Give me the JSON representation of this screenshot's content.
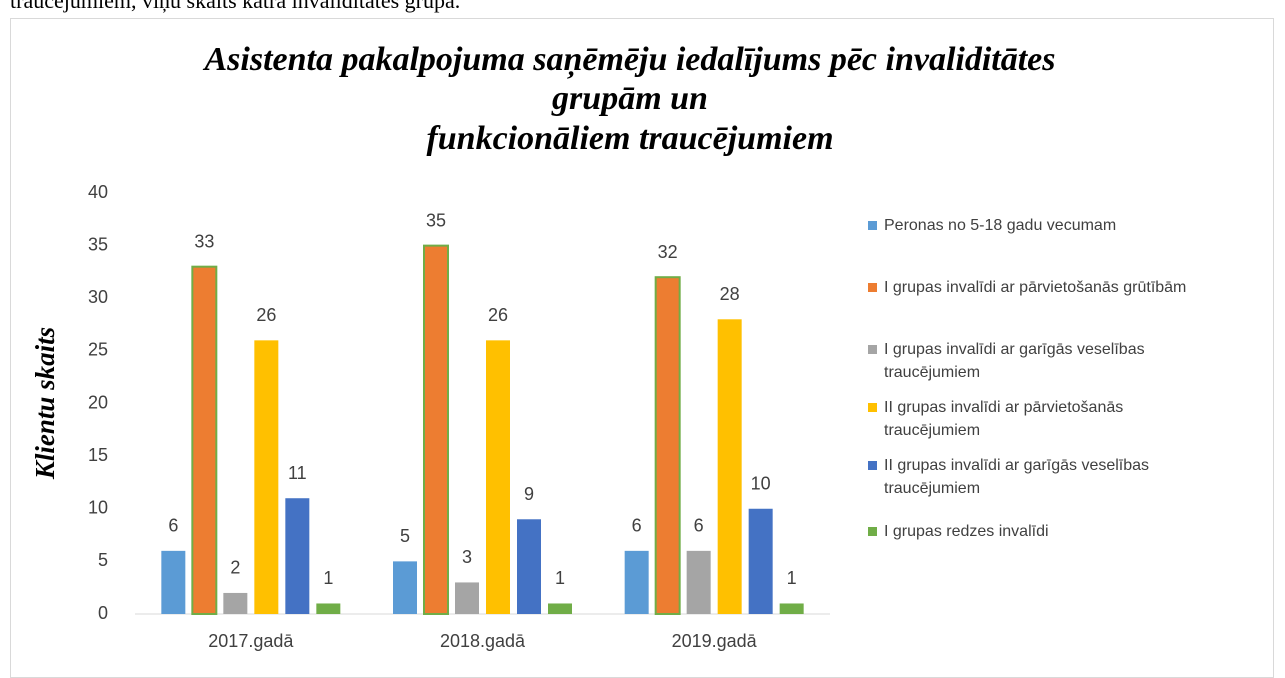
{
  "document": {
    "text": "traucējumiem, viņu skaits katrā invaliditātes grupā."
  },
  "chart_data": {
    "type": "bar",
    "title": [
      "Asistenta pakalpojuma saņēmēju iedalījums pēc invaliditātes",
      "grupām un",
      "funkcionāliem traucējumiem"
    ],
    "ylabel": "Klientu skaits",
    "categories": [
      "2017.gadā",
      "2018.gadā",
      "2019.gadā"
    ],
    "series": [
      {
        "name": "Peronas no 5-18 gadu vecumam",
        "color": "#5b9bd5",
        "values": [
          6,
          5,
          6
        ]
      },
      {
        "name": "I grupas invalīdi ar pārvietošanās grūtībām",
        "color": "#ed7d31",
        "edgecolor": "#70ad47",
        "values": [
          33,
          35,
          32
        ]
      },
      {
        "name": "I grupas invalīdi ar garīgās veselības traucējumiem",
        "color": "#a5a5a5",
        "values": [
          2,
          3,
          6
        ]
      },
      {
        "name": "II grupas invalīdi ar pārvietošanās traucējumiem",
        "color": "#ffc000",
        "values": [
          26,
          26,
          28
        ]
      },
      {
        "name": "II grupas invalīdi ar garīgās veselības traucējumiem",
        "color": "#4472c4",
        "values": [
          11,
          9,
          10
        ]
      },
      {
        "name": "I grupas redzes invalīdi",
        "color": "#70ad47",
        "values": [
          1,
          1,
          1
        ]
      }
    ],
    "ylim": [
      0,
      40
    ],
    "yticks": [
      0,
      5,
      10,
      15,
      20,
      25,
      30,
      35,
      40
    ],
    "grid": false,
    "legend": "right"
  }
}
